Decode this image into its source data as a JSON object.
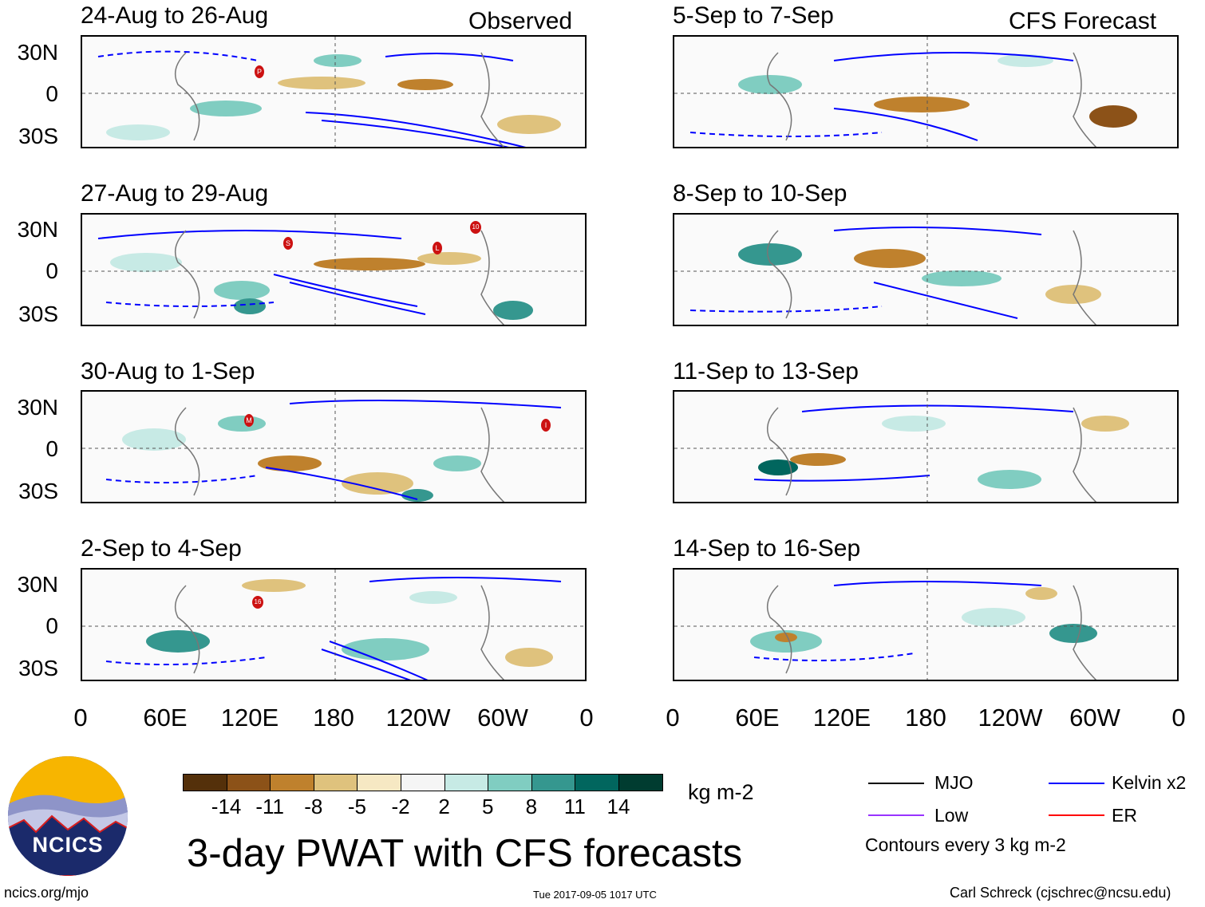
{
  "headers": {
    "observed": "Observed",
    "forecast": "CFS Forecast"
  },
  "panels": {
    "left": [
      {
        "title": "24-Aug to 26-Aug"
      },
      {
        "title": "27-Aug to 29-Aug"
      },
      {
        "title": "30-Aug to 1-Sep"
      },
      {
        "title": "2-Sep to 4-Sep"
      }
    ],
    "right": [
      {
        "title": "5-Sep to 7-Sep"
      },
      {
        "title": "8-Sep to 10-Sep"
      },
      {
        "title": "11-Sep to 13-Sep"
      },
      {
        "title": "14-Sep to 16-Sep"
      }
    ]
  },
  "lat_labels": [
    "30N",
    "0",
    "30S"
  ],
  "lon_labels": [
    "0",
    "60E",
    "120E",
    "180",
    "120W",
    "60W",
    "0"
  ],
  "storm_markers": [
    {
      "panel": "left-0",
      "label": "P"
    },
    {
      "panel": "left-1",
      "label": "S"
    },
    {
      "panel": "left-1",
      "label": "L"
    },
    {
      "panel": "left-1",
      "label": "10"
    },
    {
      "panel": "left-2",
      "label": "M"
    },
    {
      "panel": "left-2",
      "label": "I"
    },
    {
      "panel": "left-3",
      "label": "16"
    }
  ],
  "colorbar": {
    "colors": [
      "#54300a",
      "#8c5218",
      "#bf812d",
      "#dfc27d",
      "#f6e8c3",
      "#f5f5f5",
      "#c7eae5",
      "#80cdc1",
      "#35978f",
      "#01665e",
      "#003c30"
    ],
    "ticks": [
      "-14",
      "-11",
      "-8",
      "-5",
      "-2",
      "2",
      "5",
      "8",
      "11",
      "14"
    ],
    "unit": "kg m-2"
  },
  "title": "3-day PWAT with CFS forecasts",
  "logo_text": "NCICS",
  "legend": {
    "items": [
      {
        "label": "MJO",
        "color": "#000000"
      },
      {
        "label": "Kelvin x2",
        "color": "#0000ff"
      },
      {
        "label": "Low",
        "color": "#9933ff"
      },
      {
        "label": "ER",
        "color": "#ff0000"
      }
    ],
    "note": "Contours every 3 kg m-2"
  },
  "footer": {
    "url": "ncics.org/mjo",
    "timestamp": "Tue 2017-09-05 1017 UTC",
    "author": "Carl Schreck (cjschrec@ncsu.edu)"
  }
}
